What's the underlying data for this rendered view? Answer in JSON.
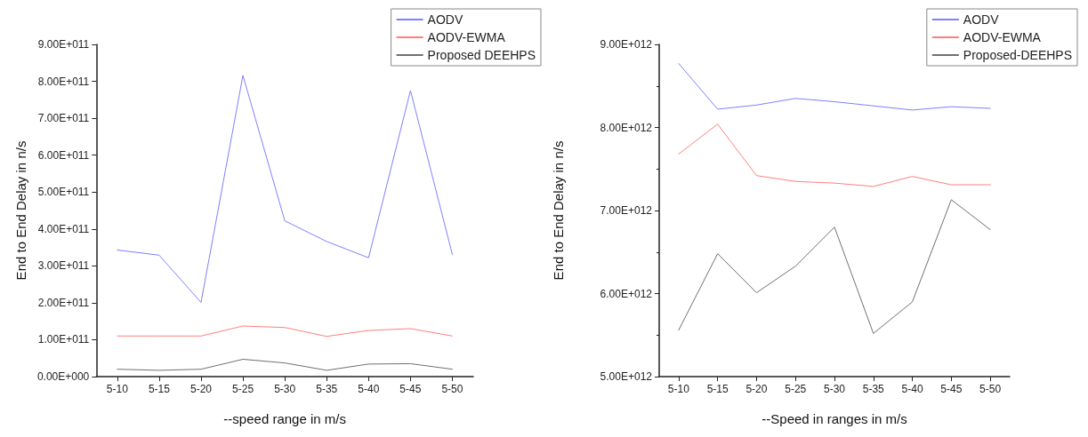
{
  "chart_data": [
    {
      "type": "line",
      "xlabel": "--speed range in m/s",
      "ylabel": "End to End Delay in n/s",
      "categories": [
        "5-10",
        "5-15",
        "5-20",
        "5-25",
        "5-30",
        "5-35",
        "5-40",
        "5-45",
        "5-50"
      ],
      "series": [
        {
          "name": "AODV",
          "color": "#7f7fff",
          "values": [
            343000000000,
            329000000000,
            201000000000,
            816000000000,
            422000000000,
            366000000000,
            322000000000,
            775000000000,
            331000000000
          ]
        },
        {
          "name": "AODV-EWMA",
          "color": "#ff7f7f",
          "values": [
            110000000000,
            110000000000,
            110000000000,
            137000000000,
            133000000000,
            109000000000,
            125000000000,
            130000000000,
            110000000000
          ]
        },
        {
          "name": "Proposed DEEHPS",
          "color": "#707070",
          "values": [
            20000000000,
            17000000000,
            20000000000,
            47000000000,
            37000000000,
            17000000000,
            34000000000,
            35000000000,
            20000000000
          ]
        }
      ],
      "ylim": [
        0,
        900000000000
      ],
      "yticks": [
        {
          "value": 0,
          "label": "0.00E+000"
        },
        {
          "value": 100000000000,
          "label": "1.00E+011"
        },
        {
          "value": 200000000000,
          "label": "2.00E+011"
        },
        {
          "value": 300000000000,
          "label": "3.00E+011"
        },
        {
          "value": 400000000000,
          "label": "4.00E+011"
        },
        {
          "value": 500000000000,
          "label": "5.00E+011"
        },
        {
          "value": 600000000000,
          "label": "6.00E+011"
        },
        {
          "value": 700000000000,
          "label": "7.00E+011"
        },
        {
          "value": 800000000000,
          "label": "8.00E+011"
        },
        {
          "value": 900000000000,
          "label": "9.00E+011"
        }
      ],
      "grid": false,
      "legend": "top right",
      "marker": "none",
      "line_style": "solid"
    },
    {
      "type": "line",
      "xlabel": "--Speed in ranges in m/s",
      "ylabel": "End to End Delay in n/s",
      "categories": [
        "5-10",
        "5-15",
        "5-20",
        "5-25",
        "5-30",
        "5-35",
        "5-40",
        "5-45",
        "5-50"
      ],
      "series": [
        {
          "name": "AODV",
          "color": "#7f7fff",
          "values": [
            8770000000000,
            8220000000000,
            8270000000000,
            8350000000000,
            8310000000000,
            8260000000000,
            8210000000000,
            8250000000000,
            8230000000000
          ]
        },
        {
          "name": "AODV-EWMA",
          "color": "#ff7f7f",
          "values": [
            7680000000000,
            8040000000000,
            7420000000000,
            7350000000000,
            7330000000000,
            7290000000000,
            7410000000000,
            7310000000000,
            7310000000000
          ]
        },
        {
          "name": "Proposed-DEEHPS",
          "color": "#707070",
          "values": [
            5560000000000,
            6480000000000,
            6010000000000,
            6330000000000,
            6800000000000,
            5520000000000,
            5900000000000,
            7130000000000,
            6770000000000
          ]
        }
      ],
      "ylim": [
        5000000000000,
        9000000000000
      ],
      "yticks": [
        {
          "value": 5000000000000,
          "label": "5.00E+012"
        },
        {
          "value": 6000000000000,
          "label": "6.00E+012"
        },
        {
          "value": 7000000000000,
          "label": "7.00E+012"
        },
        {
          "value": 8000000000000,
          "label": "8.00E+012"
        },
        {
          "value": 9000000000000,
          "label": "9.00E+012"
        }
      ],
      "grid": false,
      "legend": "top right",
      "marker": "none",
      "line_style": "solid"
    }
  ]
}
